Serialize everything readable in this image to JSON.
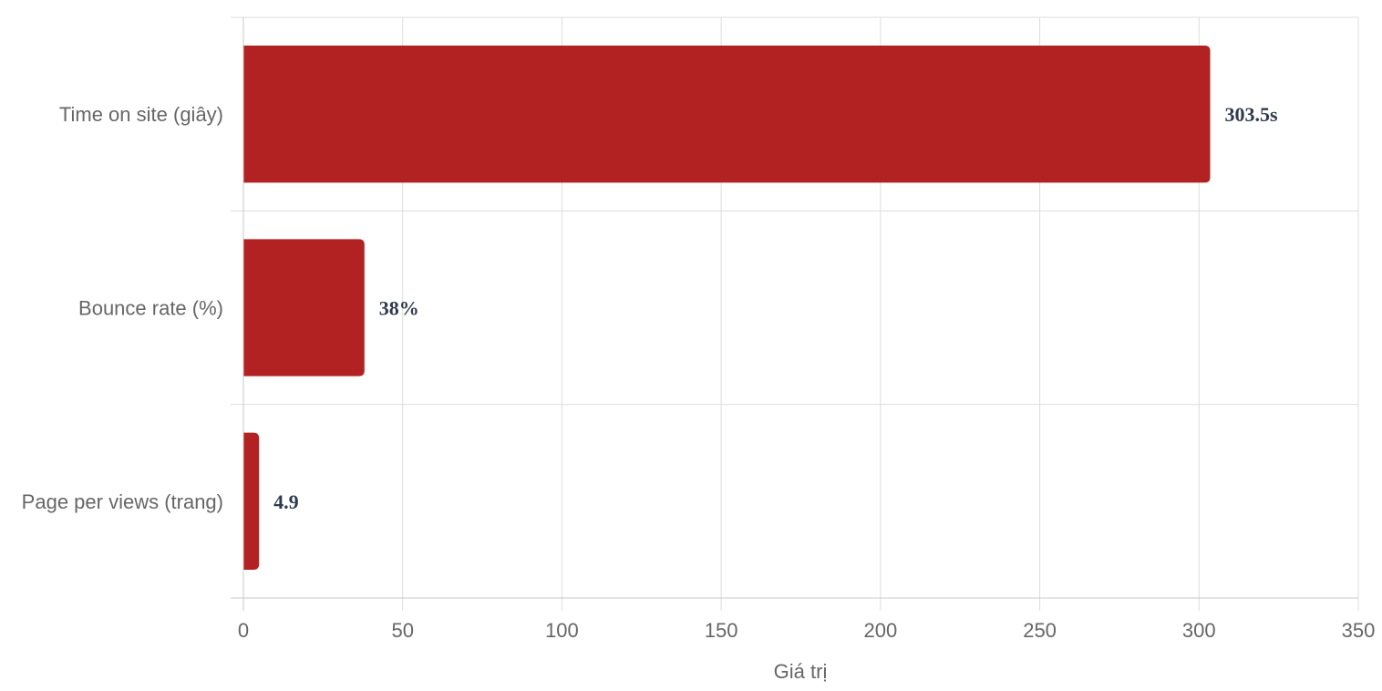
{
  "chart_data": {
    "type": "bar",
    "orientation": "horizontal",
    "categories": [
      "Time on site (giây)",
      "Bounce rate (%)",
      "Page per views (trang)"
    ],
    "values": [
      303.5,
      38,
      4.9
    ],
    "data_labels": [
      "303.5s",
      "38%",
      "4.9"
    ],
    "xlabel": "Giá trị",
    "ylabel": "",
    "xlim": [
      0,
      350
    ],
    "xticks": [
      0,
      50,
      100,
      150,
      200,
      250,
      300,
      350
    ],
    "xtick_labels": [
      "0",
      "50",
      "100",
      "150",
      "200",
      "250",
      "300",
      "350"
    ],
    "grid": true,
    "legend": "none",
    "colors": {
      "bar": "#b22222",
      "grid": "#dddddd",
      "axis": "#c8c8c8",
      "label": "#666666",
      "data_label": "#2f3b4c"
    }
  }
}
